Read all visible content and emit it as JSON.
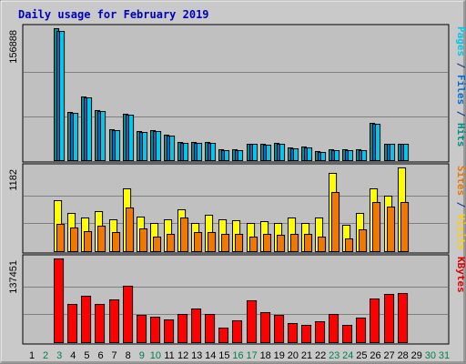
{
  "chart_data": {
    "type": "bar",
    "title": "Daily usage for February 2019",
    "categories": [
      "1",
      "2",
      "3",
      "4",
      "5",
      "6",
      "7",
      "8",
      "9",
      "10",
      "11",
      "12",
      "13",
      "14",
      "15",
      "16",
      "17",
      "18",
      "19",
      "20",
      "21",
      "22",
      "23",
      "24",
      "25",
      "26",
      "27",
      "28",
      "29",
      "30",
      "31"
    ],
    "weekend_days": [
      "2",
      "3",
      "9",
      "10",
      "16",
      "17",
      "23",
      "24",
      "30",
      "31"
    ],
    "panels": [
      {
        "id": "hits",
        "max_label": "156888",
        "ylim": [
          0,
          156888
        ],
        "right_labels": [
          {
            "text": "Pages",
            "color": "#00c8e8"
          },
          {
            "text": " / ",
            "color": "#0a2a8a"
          },
          {
            "text": "Files",
            "color": "#0070d0"
          },
          {
            "text": " / ",
            "color": "#0a2a8a"
          },
          {
            "text": "Hits",
            "color": "#00908a"
          }
        ],
        "series": [
          {
            "name": "Hits",
            "color": "#00908a",
            "values": [
              0,
              0,
              156888,
              57000,
              76000,
              59000,
              37000,
              55000,
              35000,
              36000,
              30000,
              22000,
              22000,
              22000,
              13000,
              13000,
              20000,
              19000,
              21000,
              15000,
              16000,
              11000,
              13000,
              13000,
              13000,
              44000,
              20000,
              20000,
              0,
              0,
              0
            ]
          },
          {
            "name": "Files",
            "color": "#0070d0",
            "values": [
              0,
              0,
              154000,
              56000,
              75000,
              58000,
              36000,
              54000,
              34000,
              35000,
              29000,
              21000,
              21000,
              21000,
              12000,
              12000,
              19000,
              18000,
              20000,
              14000,
              15000,
              10000,
              12000,
              12000,
              12000,
              43000,
              19000,
              19000,
              0,
              0,
              0
            ]
          },
          {
            "name": "Pages",
            "color": "#00c8e8",
            "values": [
              0,
              0,
              154000,
              56000,
              75000,
              58000,
              36000,
              54000,
              34000,
              35000,
              29000,
              21000,
              21000,
              21000,
              12000,
              12000,
              19000,
              18000,
              20000,
              14000,
              15000,
              10000,
              12000,
              12000,
              12000,
              43000,
              19000,
              19000,
              0,
              0,
              0
            ]
          }
        ]
      },
      {
        "id": "visits",
        "max_label": "1182",
        "ylim": [
          0,
          1182
        ],
        "right_labels": [
          {
            "text": "Sites",
            "color": "#e87800"
          },
          {
            "text": " / ",
            "color": "#0a2a8a"
          },
          {
            "text": "Visits",
            "color": "#ffd000"
          }
        ],
        "series": [
          {
            "name": "Visits",
            "color": "#ffff00",
            "values": [
              0,
              0,
              725,
              545,
              480,
              570,
              450,
              890,
              485,
              400,
              445,
              590,
              400,
              520,
              450,
              440,
              400,
              420,
              400,
              470,
              400,
              470,
              1110,
              370,
              540,
              890,
              780,
              1182,
              0,
              0,
              0
            ]
          },
          {
            "name": "Sites",
            "color": "#f07800",
            "values": [
              0,
              0,
              390,
              340,
              285,
              360,
              265,
              615,
              320,
              200,
              240,
              480,
              275,
              275,
              240,
              240,
              200,
              250,
              225,
              240,
              240,
              200,
              840,
              185,
              305,
              690,
              635,
              690,
              0,
              0,
              0
            ]
          }
        ]
      },
      {
        "id": "kbytes",
        "max_label": "137451",
        "ylim": [
          0,
          137451
        ],
        "right_labels": [
          {
            "text": "KBytes",
            "color": "#e00000"
          }
        ],
        "series": [
          {
            "name": "KBytes",
            "color": "#ff0000",
            "values": [
              0,
              0,
              137451,
              63000,
              76000,
              63000,
              70000,
              92000,
              45000,
              42000,
              37000,
              47000,
              56000,
              47000,
              24000,
              36000,
              69000,
              49000,
              45000,
              32000,
              29000,
              34000,
              46000,
              29000,
              41000,
              72000,
              79000,
              81000,
              0,
              0,
              0
            ]
          }
        ]
      }
    ],
    "colors": {
      "title": "#0000c0",
      "plot_bg": "#c0c0c0",
      "frame_bg": "#c9c9c9",
      "weekday_label": "#000000",
      "weekend_label": "#00804a"
    }
  }
}
